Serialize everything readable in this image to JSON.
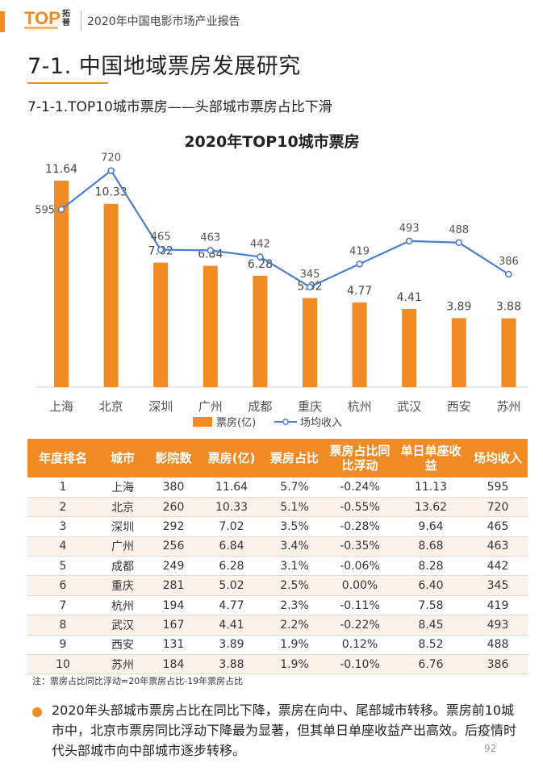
{
  "header": {
    "logo_text": "TOP",
    "logo_cn": "拓普",
    "report_title": "2020年中国电影市场产业报告"
  },
  "section_title": "7-1. 中国地域票房发展研究",
  "subsection_title": "7-1-1.TOP10城市票房——头部城市票房占比下滑",
  "colors": {
    "accent": "#f08a22",
    "bar": "#f08a22",
    "line": "#4a7fd0",
    "positive": "#d9313c",
    "negative": "#2e9e4b"
  },
  "chart_data": {
    "type": "bar",
    "title": "2020年TOP10城市票房",
    "categories": [
      "上海",
      "北京",
      "深圳",
      "广州",
      "成都",
      "重庆",
      "杭州",
      "武汉",
      "西安",
      "苏州"
    ],
    "series": [
      {
        "name": "票房(亿)",
        "type": "bar",
        "values": [
          11.64,
          10.33,
          7.02,
          6.84,
          6.28,
          5.02,
          4.77,
          4.41,
          3.89,
          3.88
        ],
        "labels": [
          "11.64",
          "10.33",
          "7.02",
          "6.84",
          "6.28",
          "5.02",
          "4.77",
          "4.41",
          "3.89",
          "3.88"
        ]
      },
      {
        "name": "场均收入",
        "type": "line",
        "values": [
          595,
          720,
          465,
          463,
          442,
          345,
          419,
          493,
          488,
          386
        ],
        "labels": [
          "595",
          "720",
          "465",
          "463",
          "442",
          "345",
          "419",
          "493",
          "488",
          "386"
        ]
      }
    ],
    "bar_axis": [
      0,
      12.5
    ],
    "line_axis": [
      100,
      750
    ],
    "legend": [
      "票房(亿)",
      "场均收入"
    ],
    "legend_position": "bottom"
  },
  "table": {
    "headers": [
      "年度排名",
      "城市",
      "影院数",
      "票房(亿)",
      "票房占比",
      "票房占比同比浮动",
      "单日单座收益",
      "场均收入"
    ],
    "rows": [
      [
        "1",
        "上海",
        "380",
        "11.64",
        "5.7%",
        "-0.24%",
        "11.13",
        "595"
      ],
      [
        "2",
        "北京",
        "260",
        "10.33",
        "5.1%",
        "-0.55%",
        "13.62",
        "720"
      ],
      [
        "3",
        "深圳",
        "292",
        "7.02",
        "3.5%",
        "-0.28%",
        "9.64",
        "465"
      ],
      [
        "4",
        "广州",
        "256",
        "6.84",
        "3.4%",
        "-0.35%",
        "8.68",
        "463"
      ],
      [
        "5",
        "成都",
        "249",
        "6.28",
        "3.1%",
        "-0.06%",
        "8.28",
        "442"
      ],
      [
        "6",
        "重庆",
        "281",
        "5.02",
        "2.5%",
        "0.00%",
        "6.40",
        "345"
      ],
      [
        "7",
        "杭州",
        "194",
        "4.77",
        "2.3%",
        "-0.11%",
        "7.58",
        "419"
      ],
      [
        "8",
        "武汉",
        "167",
        "4.41",
        "2.2%",
        "-0.22%",
        "8.45",
        "493"
      ],
      [
        "9",
        "西安",
        "131",
        "3.89",
        "1.9%",
        "0.12%",
        "8.52",
        "488"
      ],
      [
        "10",
        "苏州",
        "184",
        "3.88",
        "1.9%",
        "-0.10%",
        "6.76",
        "386"
      ]
    ],
    "trend": [
      "neg",
      "neg",
      "neg",
      "neg",
      "neg",
      "neg",
      "neg",
      "neg",
      "pos",
      "neg"
    ]
  },
  "note": "注：票房占比同比浮动=20年票房占比-19年票房占比",
  "summary": "2020年头部城市票房占比在同比下降，票房在向中、尾部城市转移。票房前10城市中，北京市票房同比浮动下降最为显著，但其单日单座收益产出高效。后疫情时代头部城市向中部城市逐步转移。",
  "page_number": "92"
}
